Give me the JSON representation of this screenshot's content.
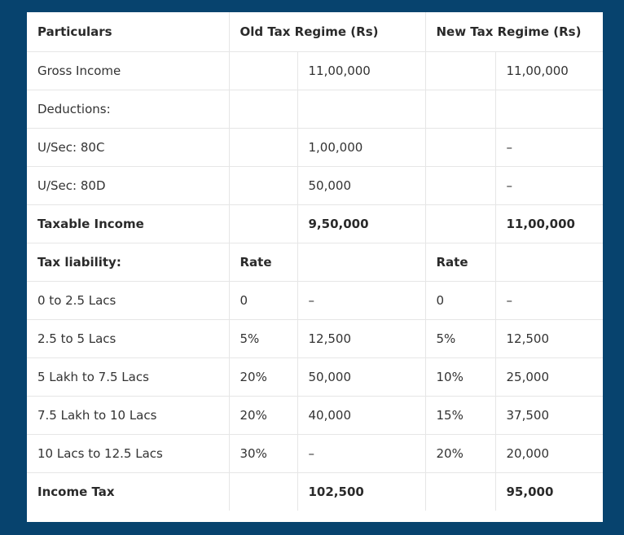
{
  "table": {
    "header": {
      "particulars": "Particulars",
      "old_regime": "Old Tax Regime (Rs)",
      "new_regime": "New Tax Regime (Rs)"
    },
    "rows": [
      {
        "label": "Gross Income",
        "old_rate": "",
        "old_value": "11,00,000",
        "new_rate": "",
        "new_value": "11,00,000",
        "bold": false
      },
      {
        "label": "Deductions:",
        "old_rate": "",
        "old_value": "",
        "new_rate": "",
        "new_value": "",
        "bold": false
      },
      {
        "label": "U/Sec: 80C",
        "old_rate": "",
        "old_value": "1,00,000",
        "new_rate": "",
        "new_value": "–",
        "bold": false
      },
      {
        "label": "U/Sec: 80D",
        "old_rate": "",
        "old_value": "50,000",
        "new_rate": "",
        "new_value": "–",
        "bold": false
      },
      {
        "label": "Taxable Income",
        "old_rate": "",
        "old_value": "9,50,000",
        "new_rate": "",
        "new_value": "11,00,000",
        "bold": true
      },
      {
        "label": "Tax liability:",
        "old_rate": "Rate",
        "old_value": "",
        "new_rate": "Rate",
        "new_value": "",
        "bold": true
      },
      {
        "label": "0 to 2.5 Lacs",
        "old_rate": "0",
        "old_value": "–",
        "new_rate": "0",
        "new_value": "–",
        "bold": false
      },
      {
        "label": "2.5 to 5 Lacs",
        "old_rate": "5%",
        "old_value": "12,500",
        "new_rate": "5%",
        "new_value": "12,500",
        "bold": false
      },
      {
        "label": "5 Lakh to 7.5 Lacs",
        "old_rate": "20%",
        "old_value": "50,000",
        "new_rate": "10%",
        "new_value": "25,000",
        "bold": false
      },
      {
        "label": "7.5 Lakh to 10 Lacs",
        "old_rate": "20%",
        "old_value": "40,000",
        "new_rate": "15%",
        "new_value": "37,500",
        "bold": false
      },
      {
        "label": "10 Lacs to 12.5 Lacs",
        "old_rate": "30%",
        "old_value": "–",
        "new_rate": "20%",
        "new_value": "20,000",
        "bold": false
      },
      {
        "label": "Income Tax",
        "old_rate": "",
        "old_value": "102,500",
        "new_rate": "",
        "new_value": "95,000",
        "bold": true
      }
    ]
  }
}
